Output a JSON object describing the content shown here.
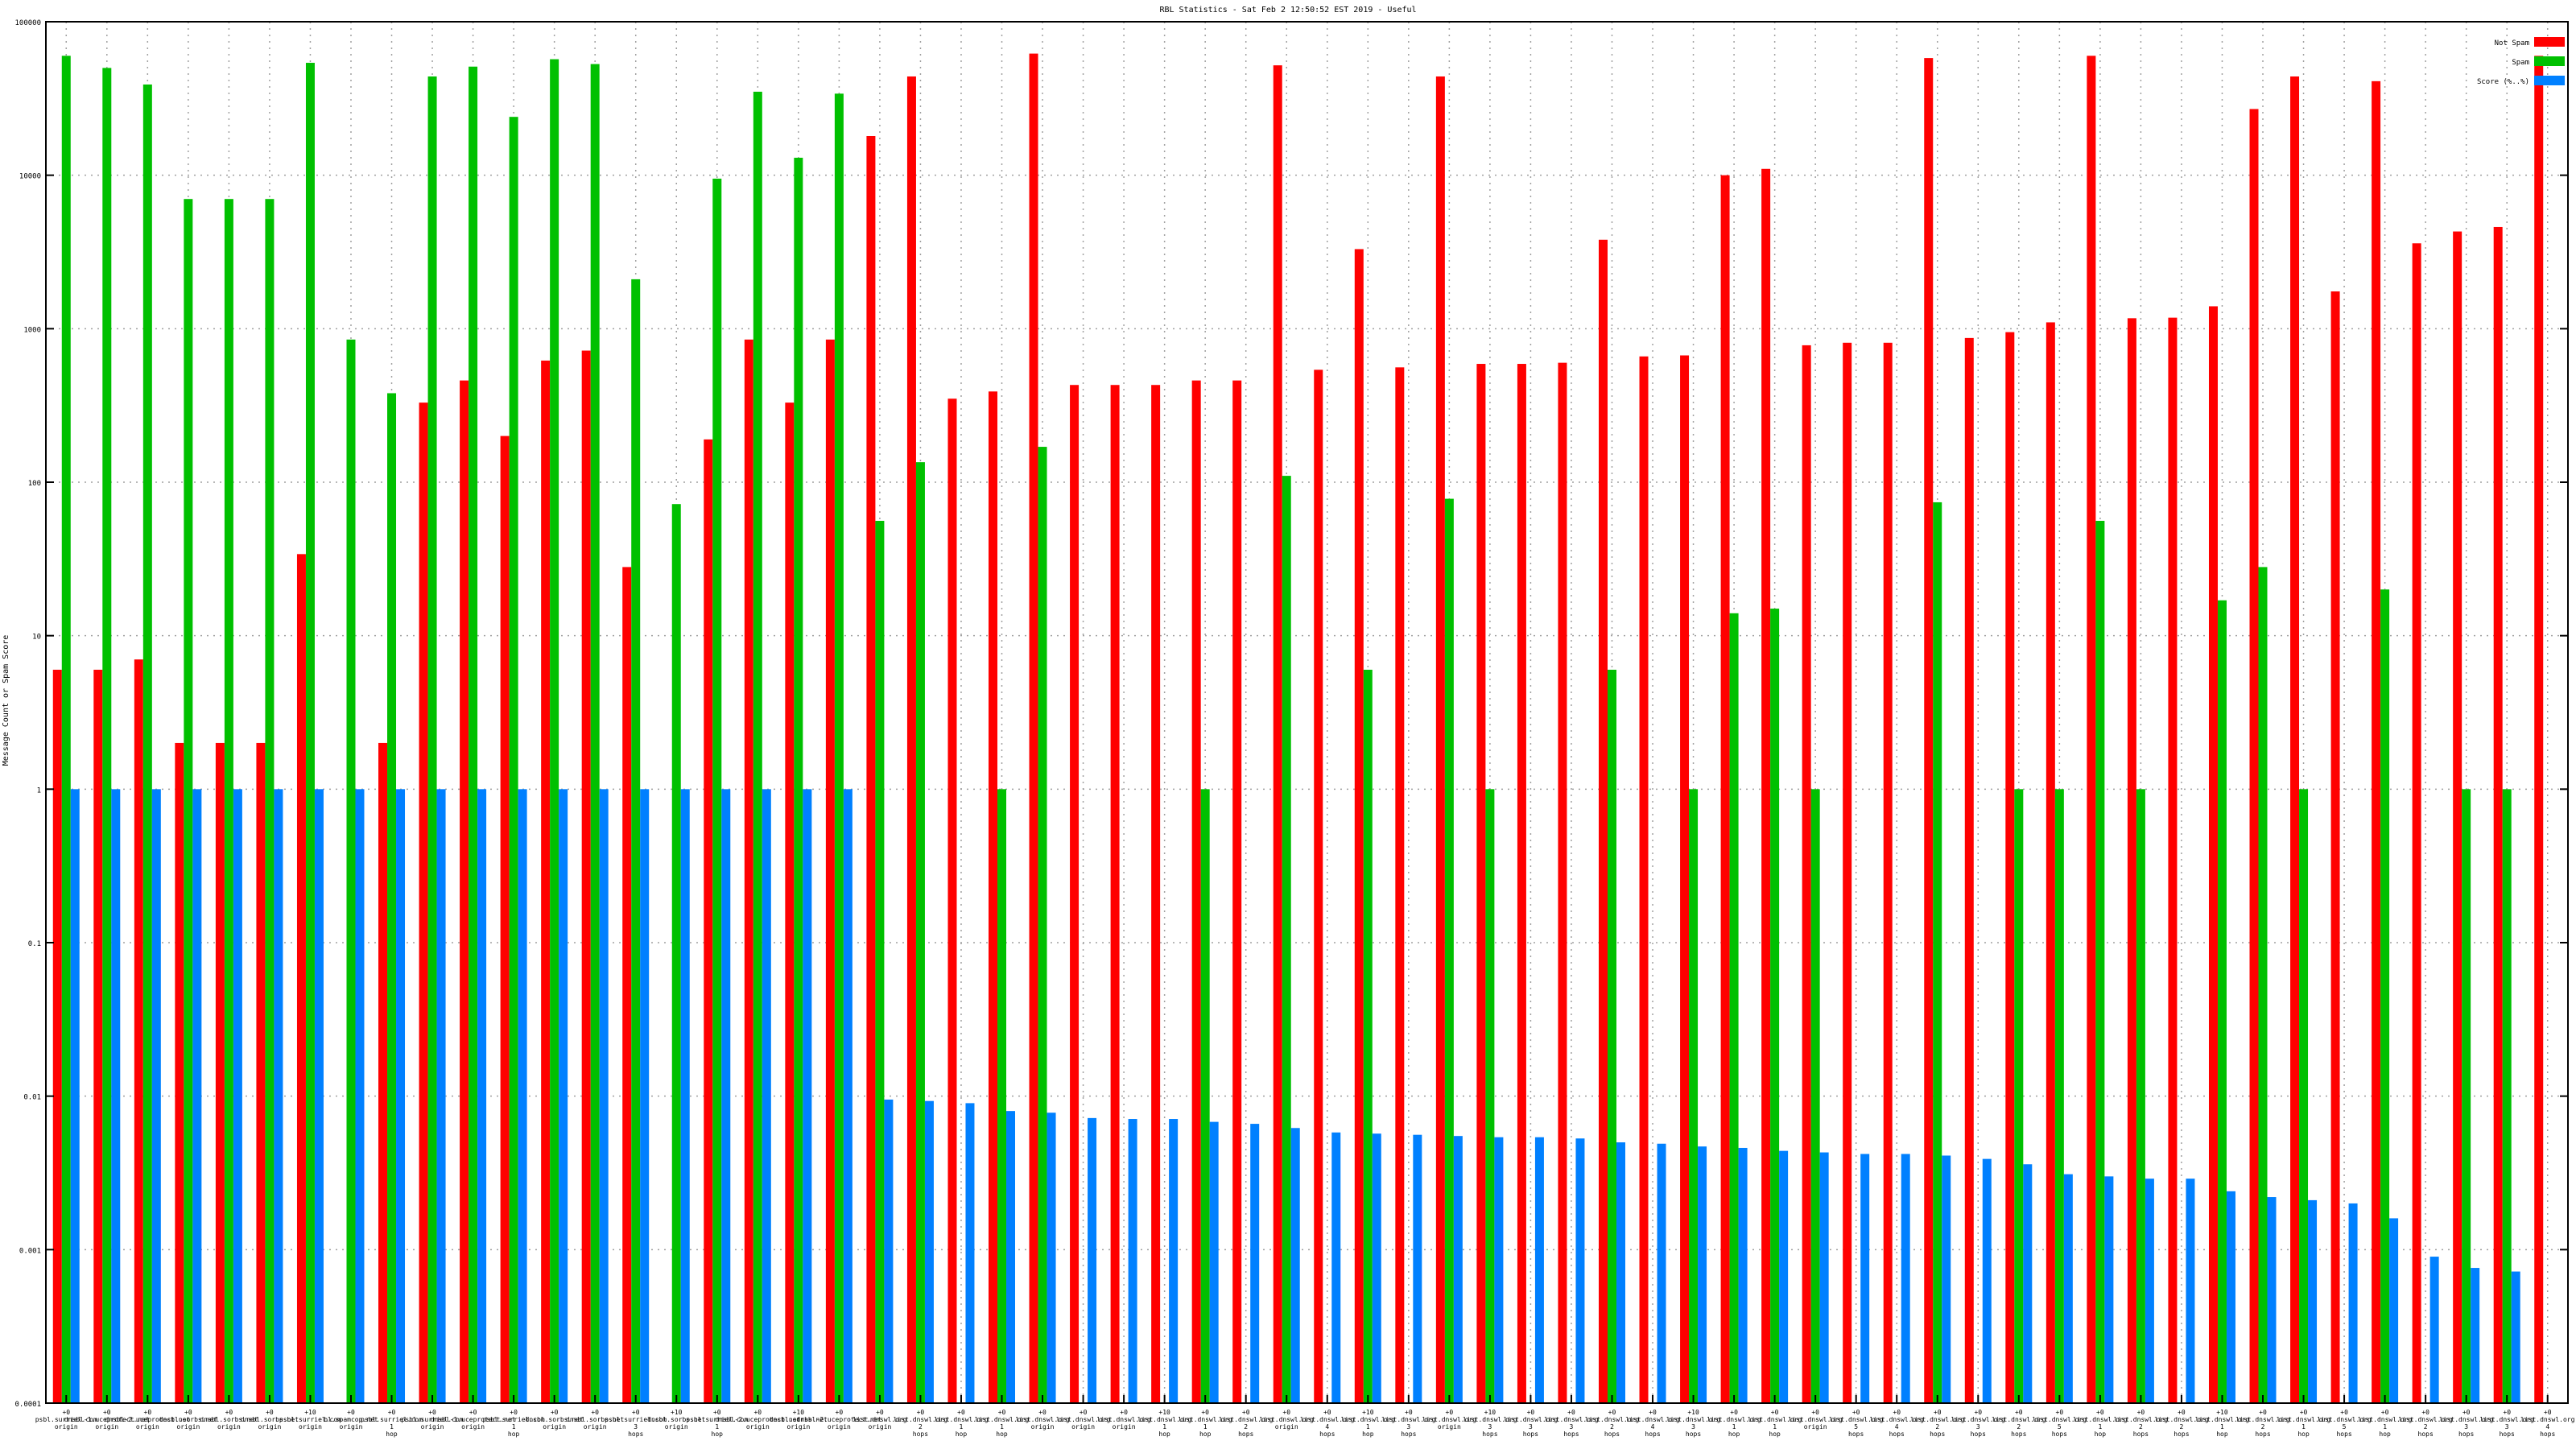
{
  "chart_data": {
    "type": "bar",
    "title": "RBL Statistics - Sat Feb  2 12:50:52 EST 2019 - Useful",
    "xlabel": "",
    "ylabel": "Message Count or Spam Score",
    "y_scale": "log",
    "ylim": [
      0.0001,
      100000
    ],
    "y_ticks": [
      "0.0001",
      "0.001",
      "0.01",
      "0.1",
      "1",
      "10",
      "100",
      "1000",
      "10000",
      "100000"
    ],
    "grid": true,
    "legend_position": "top-right",
    "colors": {
      "not_spam": "#ff0000",
      "spam": "#00c000",
      "score": "#0080ff"
    },
    "categories": [
      "+0 psbl.surriel.com origin",
      "+0 dnsbl-1.uceprotect.net origin",
      "+0 dnsbl-2.uceprotect.net origin",
      "+0 dnsbl.sorbs.net origin",
      "+0 dnsbl.sorbs.net origin",
      "+0 dnsbl.sorbs.net origin",
      "+10 psbl.surriel.com origin",
      "+0 bl.spamcop.net origin",
      "+0 psbl.surriel.com 1 hop",
      "+0 psbl.surriel.com origin",
      "+0 dnsbl-1.uceprotect.net origin",
      "+0 psbl.surriel.com 1 hop",
      "+0 dnsbl.sorbs.net origin",
      "+0 dnsbl.sorbs.net origin",
      "+0 psbl.surriel.com 3 hops",
      "+10 dnsbl.sorbs.net origin",
      "+0 psbl.surriel.com 1 hop",
      "+0 dnsbl-2.uceprotect.net origin",
      "+10 dnsbl.sorbs.net origin",
      "+0 dnsbl-2.uceprotect.net origin",
      "+0 list.dnswl.org origin",
      "+0 list.dnswl.org 2 hops",
      "+0 list.dnswl.org 1 hop",
      "+0 list.dnswl.org 1 hop",
      "+0 list.dnswl.org origin",
      "+0 list.dnswl.org origin",
      "+0 list.dnswl.org origin",
      "+10 list.dnswl.org 1 hop",
      "+0 list.dnswl.org 1 hop",
      "+0 list.dnswl.org 2 hops",
      "+0 list.dnswl.org origin",
      "+0 list.dnswl.org 4 hops",
      "+10 list.dnswl.org 1 hop",
      "+0 list.dnswl.org 3 hops",
      "+0 list.dnswl.org origin",
      "+10 list.dnswl.org 3 hops",
      "+0 list.dnswl.org 3 hops",
      "+0 list.dnswl.org 3 hops",
      "+0 list.dnswl.org 2 hops",
      "+0 list.dnswl.org 4 hops",
      "+10 list.dnswl.org 3 hops",
      "+0 list.dnswl.org 1 hop",
      "+0 list.dnswl.org 1 hop",
      "+0 list.dnswl.org origin",
      "+0 list.dnswl.org 5 hops",
      "+0 list.dnswl.org 4 hops",
      "+0 list.dnswl.org 2 hops",
      "+0 list.dnswl.org 3 hops",
      "+0 list.dnswl.org 2 hops",
      "+0 list.dnswl.org 5 hops",
      "+0 list.dnswl.org 1 hop",
      "+0 list.dnswl.org 2 hops",
      "+0 list.dnswl.org 2 hops",
      "+10 list.dnswl.org 1 hop",
      "+0 list.dnswl.org 2 hops",
      "+0 list.dnswl.org 1 hop",
      "+0 list.dnswl.org 5 hops",
      "+0 list.dnswl.org 1 hop",
      "+0 list.dnswl.org 2 hops",
      "+0 list.dnswl.org 3 hops",
      "+0 list.dnswl.org 3 hops",
      "+0 list.dnswl.org 4 hops"
    ],
    "series": [
      {
        "name": "Not Spam",
        "color": "#ff0000",
        "values": [
          6,
          6,
          7,
          2,
          2,
          2,
          34,
          null,
          2,
          330,
          460,
          200,
          620,
          720,
          28,
          null,
          190,
          850,
          330,
          850,
          18000,
          44000,
          350,
          390,
          62000,
          430,
          430,
          430,
          460,
          460,
          52000,
          540,
          3300,
          560,
          44000,
          590,
          590,
          600,
          3800,
          660,
          670,
          10000,
          11000,
          780,
          810,
          810,
          58000,
          870,
          950,
          1100,
          60000,
          1170,
          1180,
          1400,
          27000,
          44000,
          1750,
          41000,
          3600,
          4300,
          4600,
          60000
        ]
      },
      {
        "name": "Spam",
        "color": "#00c000",
        "values": [
          60000,
          50000,
          39000,
          7000,
          7000,
          7000,
          54000,
          850,
          380,
          44000,
          51000,
          24000,
          57000,
          53000,
          2100,
          72,
          9500,
          35000,
          13000,
          34000,
          56,
          135,
          null,
          1,
          170,
          null,
          null,
          null,
          1,
          null,
          110,
          null,
          6,
          null,
          78,
          1,
          null,
          null,
          6,
          null,
          1,
          14,
          15,
          1,
          null,
          null,
          74,
          null,
          1,
          1,
          56,
          1,
          null,
          17,
          28,
          1,
          null,
          20,
          null,
          1,
          1,
          null
        ]
      },
      {
        "name": "Score (%..%)",
        "color": "#0080ff",
        "values": [
          1,
          1,
          1,
          1,
          1,
          1,
          1,
          1,
          1,
          1,
          1,
          1,
          1,
          1,
          1,
          1,
          1,
          1,
          1,
          1,
          0.0095,
          0.0093,
          0.009,
          0.008,
          0.0078,
          0.0072,
          0.0071,
          0.0071,
          0.0068,
          0.0066,
          0.0062,
          0.0058,
          0.0057,
          0.0056,
          0.0055,
          0.0054,
          0.0054,
          0.0053,
          0.005,
          0.0049,
          0.0047,
          0.0046,
          0.0044,
          0.0043,
          0.0042,
          0.0042,
          0.0041,
          0.0039,
          0.0036,
          0.0031,
          0.003,
          0.0029,
          0.0029,
          0.0024,
          0.0022,
          0.0021,
          0.002,
          0.0016,
          0.0009,
          0.00076,
          0.00072,
          null
        ]
      }
    ]
  }
}
